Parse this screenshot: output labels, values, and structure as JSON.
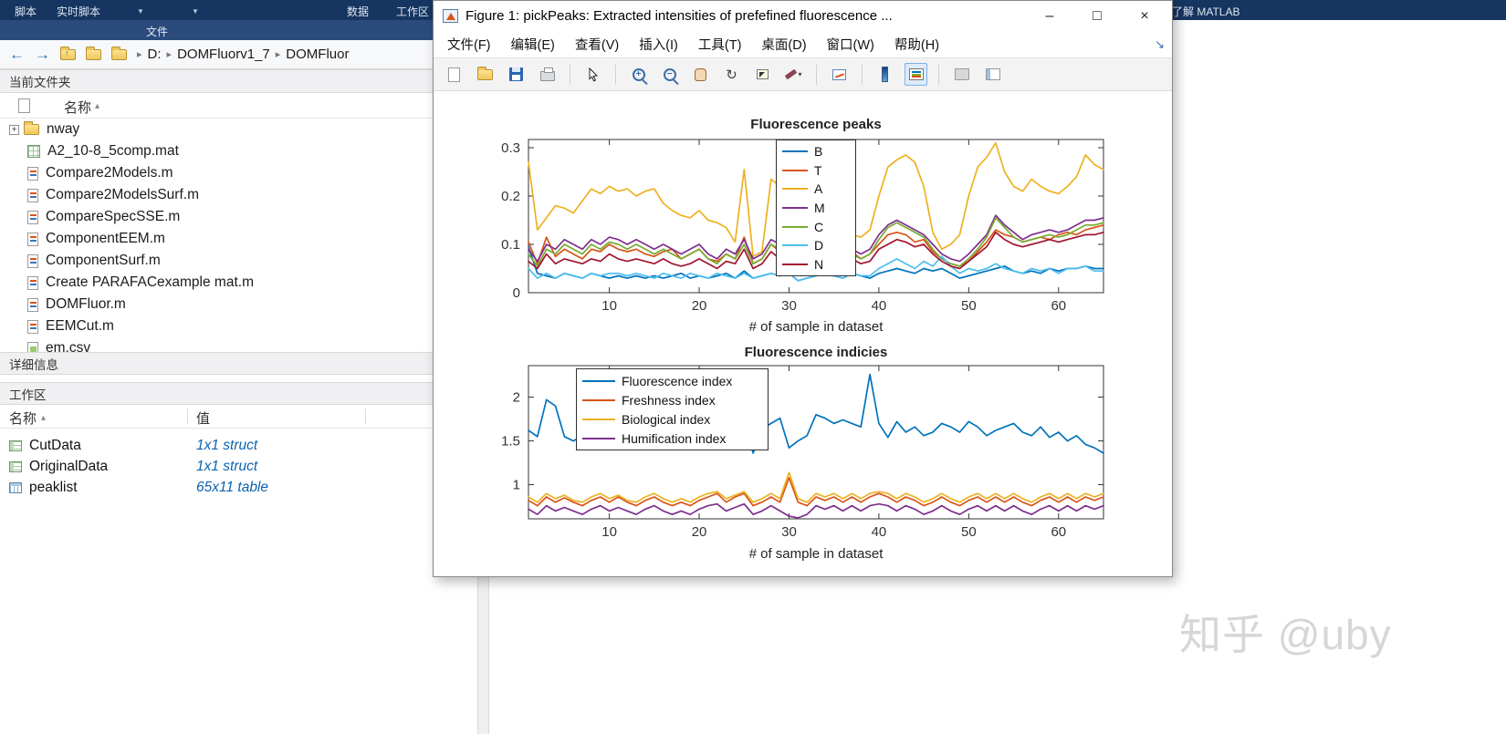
{
  "matlab_toolstrip": {
    "tab_fragments": [
      "脚本",
      "实时脚本",
      "数据",
      "工作区"
    ],
    "section_label": "文件",
    "resources_label": "了解 MATLAB"
  },
  "address_bar": {
    "breadcrumb": [
      "D:",
      "DOMFluorv1_7",
      "DOMFluor"
    ]
  },
  "current_folder": {
    "title": "当前文件夹",
    "column_header": "名称",
    "files": [
      {
        "name": "nway",
        "type": "folder",
        "expandable": true
      },
      {
        "name": "A2_10-8_5comp.mat",
        "type": "mat"
      },
      {
        "name": "Compare2Models.m",
        "type": "mfile"
      },
      {
        "name": "Compare2ModelsSurf.m",
        "type": "mfile"
      },
      {
        "name": "CompareSpecSSE.m",
        "type": "mfile"
      },
      {
        "name": "ComponentEEM.m",
        "type": "mfile"
      },
      {
        "name": "ComponentSurf.m",
        "type": "mfile"
      },
      {
        "name": "Create PARAFACexample mat.m",
        "type": "mfile"
      },
      {
        "name": "DOMFluor.m",
        "type": "mfile"
      },
      {
        "name": "EEMCut.m",
        "type": "mfile"
      },
      {
        "name": "em.csv",
        "type": "csv"
      }
    ]
  },
  "details_panel": {
    "title": "详细信息"
  },
  "workspace": {
    "title": "工作区",
    "columns": [
      "名称",
      "值"
    ],
    "rows": [
      {
        "name": "CutData",
        "value": "1x1 struct",
        "type": "struct"
      },
      {
        "name": "OriginalData",
        "value": "1x1 struct",
        "type": "struct"
      },
      {
        "name": "peaklist",
        "value": "65x11 table",
        "type": "table"
      }
    ]
  },
  "figure_window": {
    "title": "Figure 1: pickPeaks: Extracted intensities of prefefined fluorescence ...",
    "menu_items": [
      "文件(F)",
      "编辑(E)",
      "查看(V)",
      "插入(I)",
      "工具(T)",
      "桌面(D)",
      "窗口(W)",
      "帮助(H)"
    ]
  },
  "watermark": "知乎 @uby",
  "colors": {
    "toolstrip_navy": "#163560",
    "section_navy": "#2b4b7d",
    "workspace_value_blue": "#0b62b0",
    "legend_active_bg": "#dcebfb"
  },
  "icons": {
    "back_arrow": "←",
    "forward_arrow": "→",
    "up_arrow": "↑",
    "breadcrumb_separator": "▸",
    "sort_ascending": "▴",
    "folder_expander": "+",
    "toolstrip_caret": "▼",
    "brush_caret": "▾",
    "rotate_3d": "↻",
    "zoom_plus": "+",
    "zoom_minus": "−",
    "minimize": "–",
    "maximize": "□",
    "close": "×",
    "dock_figure": "↘"
  },
  "chart_data": [
    {
      "type": "line",
      "title": "Fluorescence peaks",
      "xlabel": "# of sample in dataset",
      "ylabel": "",
      "x_description": "sample index 1-65, one value per sample",
      "xlim": [
        1,
        65
      ],
      "ylim": [
        0,
        0.317
      ],
      "xticks": [
        10,
        20,
        30,
        40,
        50,
        60
      ],
      "yticks": [
        0,
        0.1,
        0.2,
        0.3
      ],
      "grid": false,
      "legend_position": "north (top center, inside axes)",
      "series": [
        {
          "name": "B",
          "color": "#0072BD",
          "values": [
            0.095,
            0.04,
            0.035,
            0.03,
            0.04,
            0.035,
            0.03,
            0.04,
            0.035,
            0.03,
            0.035,
            0.03,
            0.035,
            0.03,
            0.035,
            0.03,
            0.035,
            0.04,
            0.03,
            0.035,
            0.03,
            0.035,
            0.04,
            0.03,
            0.045,
            0.03,
            0.035,
            0.04,
            0.035,
            0.04,
            0.025,
            0.03,
            0.035,
            0.04,
            0.035,
            0.03,
            0.04,
            0.035,
            0.03,
            0.04,
            0.045,
            0.05,
            0.045,
            0.04,
            0.05,
            0.045,
            0.05,
            0.04,
            0.03,
            0.035,
            0.04,
            0.045,
            0.05,
            0.055,
            0.045,
            0.04,
            0.045,
            0.04,
            0.05,
            0.045,
            0.05,
            0.05,
            0.055,
            0.05,
            0.05
          ]
        },
        {
          "name": "T",
          "color": "#D95319",
          "values": [
            0.105,
            0.06,
            0.115,
            0.075,
            0.09,
            0.08,
            0.07,
            0.09,
            0.085,
            0.1,
            0.09,
            0.085,
            0.09,
            0.08,
            0.075,
            0.085,
            0.09,
            0.07,
            0.08,
            0.09,
            0.07,
            0.065,
            0.08,
            0.07,
            0.115,
            0.06,
            0.07,
            0.1,
            0.085,
            0.09,
            0.05,
            0.06,
            0.07,
            0.08,
            0.075,
            0.065,
            0.085,
            0.07,
            0.08,
            0.1,
            0.12,
            0.125,
            0.12,
            0.105,
            0.11,
            0.085,
            0.07,
            0.06,
            0.055,
            0.065,
            0.085,
            0.105,
            0.13,
            0.12,
            0.115,
            0.105,
            0.11,
            0.115,
            0.11,
            0.12,
            0.125,
            0.12,
            0.13,
            0.135,
            0.14
          ]
        },
        {
          "name": "A",
          "color": "#EDB120",
          "values": [
            0.27,
            0.13,
            0.155,
            0.18,
            0.175,
            0.165,
            0.19,
            0.215,
            0.205,
            0.22,
            0.21,
            0.215,
            0.2,
            0.21,
            0.215,
            0.185,
            0.17,
            0.16,
            0.155,
            0.17,
            0.15,
            0.145,
            0.135,
            0.105,
            0.255,
            0.075,
            0.085,
            0.235,
            0.22,
            0.085,
            0.05,
            0.065,
            0.1,
            0.12,
            0.11,
            0.1,
            0.12,
            0.115,
            0.13,
            0.2,
            0.26,
            0.275,
            0.285,
            0.27,
            0.22,
            0.125,
            0.09,
            0.1,
            0.12,
            0.2,
            0.26,
            0.28,
            0.31,
            0.25,
            0.22,
            0.21,
            0.235,
            0.22,
            0.21,
            0.205,
            0.22,
            0.24,
            0.285,
            0.265,
            0.255
          ]
        },
        {
          "name": "M",
          "color": "#7E2F8E",
          "values": [
            0.09,
            0.065,
            0.1,
            0.09,
            0.11,
            0.1,
            0.09,
            0.11,
            0.1,
            0.115,
            0.11,
            0.1,
            0.11,
            0.1,
            0.09,
            0.1,
            0.09,
            0.08,
            0.09,
            0.1,
            0.08,
            0.07,
            0.09,
            0.08,
            0.11,
            0.07,
            0.08,
            0.11,
            0.1,
            0.09,
            0.06,
            0.07,
            0.08,
            0.09,
            0.08,
            0.07,
            0.09,
            0.08,
            0.09,
            0.12,
            0.14,
            0.15,
            0.14,
            0.13,
            0.12,
            0.1,
            0.08,
            0.07,
            0.065,
            0.08,
            0.1,
            0.12,
            0.16,
            0.14,
            0.125,
            0.11,
            0.12,
            0.125,
            0.13,
            0.125,
            0.13,
            0.14,
            0.15,
            0.15,
            0.155
          ]
        },
        {
          "name": "C",
          "color": "#77AC30",
          "values": [
            0.08,
            0.055,
            0.09,
            0.08,
            0.1,
            0.09,
            0.08,
            0.1,
            0.09,
            0.105,
            0.1,
            0.09,
            0.1,
            0.09,
            0.08,
            0.09,
            0.08,
            0.07,
            0.08,
            0.09,
            0.07,
            0.06,
            0.08,
            0.07,
            0.1,
            0.06,
            0.07,
            0.1,
            0.09,
            0.08,
            0.05,
            0.06,
            0.07,
            0.08,
            0.07,
            0.06,
            0.08,
            0.07,
            0.08,
            0.11,
            0.135,
            0.145,
            0.135,
            0.125,
            0.115,
            0.09,
            0.07,
            0.06,
            0.055,
            0.07,
            0.09,
            0.115,
            0.155,
            0.135,
            0.115,
            0.105,
            0.11,
            0.115,
            0.12,
            0.115,
            0.12,
            0.13,
            0.14,
            0.14,
            0.145
          ]
        },
        {
          "name": "D",
          "color": "#4DBEEE",
          "values": [
            0.05,
            0.03,
            0.04,
            0.03,
            0.04,
            0.035,
            0.03,
            0.04,
            0.035,
            0.04,
            0.04,
            0.035,
            0.04,
            0.035,
            0.03,
            0.04,
            0.035,
            0.03,
            0.04,
            0.035,
            0.03,
            0.04,
            0.035,
            0.03,
            0.04,
            0.03,
            0.035,
            0.04,
            0.035,
            0.04,
            0.025,
            0.03,
            0.035,
            0.04,
            0.035,
            0.03,
            0.04,
            0.035,
            0.035,
            0.05,
            0.06,
            0.07,
            0.06,
            0.05,
            0.065,
            0.055,
            0.075,
            0.055,
            0.04,
            0.05,
            0.045,
            0.05,
            0.06,
            0.05,
            0.045,
            0.04,
            0.05,
            0.045,
            0.05,
            0.04,
            0.05,
            0.05,
            0.055,
            0.045,
            0.045
          ]
        },
        {
          "name": "N",
          "color": "#A2142F",
          "values": [
            0.065,
            0.05,
            0.08,
            0.06,
            0.07,
            0.065,
            0.06,
            0.07,
            0.065,
            0.08,
            0.07,
            0.065,
            0.07,
            0.065,
            0.06,
            0.07,
            0.06,
            0.055,
            0.06,
            0.07,
            0.06,
            0.05,
            0.065,
            0.06,
            0.09,
            0.05,
            0.06,
            0.085,
            0.07,
            0.07,
            0.045,
            0.05,
            0.06,
            0.065,
            0.06,
            0.055,
            0.07,
            0.06,
            0.065,
            0.09,
            0.1,
            0.11,
            0.105,
            0.095,
            0.1,
            0.08,
            0.065,
            0.055,
            0.05,
            0.065,
            0.08,
            0.095,
            0.125,
            0.11,
            0.1,
            0.095,
            0.1,
            0.105,
            0.11,
            0.105,
            0.11,
            0.115,
            0.12,
            0.12,
            0.125
          ]
        }
      ]
    },
    {
      "type": "line",
      "title": "Fluorescence indicies",
      "xlabel": "# of sample in dataset",
      "ylabel": "",
      "x_description": "sample index 1-65, one value per sample",
      "xlim": [
        1,
        65
      ],
      "ylim": [
        0.61,
        2.36
      ],
      "xticks": [
        10,
        20,
        30,
        40,
        50,
        60
      ],
      "yticks": [
        1,
        1.5,
        2
      ],
      "grid": false,
      "legend_position": "northwest (top left, inside axes)",
      "series": [
        {
          "name": "Fluorescence index",
          "color": "#0072BD",
          "values": [
            1.62,
            1.55,
            1.97,
            1.9,
            1.55,
            1.5,
            1.56,
            1.62,
            1.66,
            1.6,
            1.55,
            1.76,
            1.7,
            1.64,
            1.7,
            1.76,
            1.7,
            1.66,
            1.72,
            1.6,
            1.55,
            1.66,
            1.76,
            1.7,
            1.74,
            1.36,
            1.64,
            1.7,
            1.76,
            1.42,
            1.5,
            1.56,
            1.8,
            1.76,
            1.7,
            1.74,
            1.7,
            1.66,
            2.26,
            1.7,
            1.54,
            1.72,
            1.6,
            1.66,
            1.56,
            1.6,
            1.7,
            1.66,
            1.6,
            1.72,
            1.66,
            1.56,
            1.62,
            1.66,
            1.7,
            1.6,
            1.56,
            1.66,
            1.54,
            1.6,
            1.5,
            1.56,
            1.46,
            1.42,
            1.36
          ]
        },
        {
          "name": "Freshness index",
          "color": "#D95319",
          "values": [
            0.82,
            0.76,
            0.86,
            0.8,
            0.85,
            0.8,
            0.76,
            0.82,
            0.86,
            0.8,
            0.86,
            0.8,
            0.76,
            0.82,
            0.86,
            0.8,
            0.76,
            0.8,
            0.76,
            0.82,
            0.86,
            0.9,
            0.8,
            0.86,
            0.9,
            0.76,
            0.8,
            0.86,
            0.8,
            1.08,
            0.8,
            0.76,
            0.86,
            0.82,
            0.86,
            0.8,
            0.86,
            0.8,
            0.86,
            0.9,
            0.86,
            0.8,
            0.86,
            0.82,
            0.76,
            0.8,
            0.86,
            0.8,
            0.76,
            0.82,
            0.86,
            0.8,
            0.86,
            0.8,
            0.86,
            0.8,
            0.76,
            0.82,
            0.86,
            0.8,
            0.86,
            0.8,
            0.86,
            0.82,
            0.86
          ]
        },
        {
          "name": "Biological index",
          "color": "#EDB120",
          "values": [
            0.86,
            0.8,
            0.9,
            0.84,
            0.88,
            0.82,
            0.8,
            0.86,
            0.9,
            0.84,
            0.88,
            0.82,
            0.8,
            0.86,
            0.9,
            0.84,
            0.8,
            0.84,
            0.8,
            0.86,
            0.9,
            0.92,
            0.84,
            0.88,
            0.92,
            0.8,
            0.84,
            0.9,
            0.84,
            1.14,
            0.84,
            0.8,
            0.9,
            0.86,
            0.9,
            0.84,
            0.9,
            0.84,
            0.9,
            0.92,
            0.9,
            0.84,
            0.9,
            0.86,
            0.8,
            0.84,
            0.9,
            0.84,
            0.8,
            0.86,
            0.9,
            0.84,
            0.9,
            0.84,
            0.9,
            0.84,
            0.8,
            0.86,
            0.9,
            0.84,
            0.9,
            0.84,
            0.9,
            0.86,
            0.9
          ]
        },
        {
          "name": "Humification index",
          "color": "#7E2F8E",
          "values": [
            0.72,
            0.66,
            0.76,
            0.7,
            0.74,
            0.7,
            0.66,
            0.72,
            0.76,
            0.7,
            0.74,
            0.7,
            0.66,
            0.72,
            0.76,
            0.7,
            0.66,
            0.7,
            0.66,
            0.72,
            0.76,
            0.78,
            0.7,
            0.74,
            0.78,
            0.66,
            0.7,
            0.76,
            0.7,
            0.64,
            0.62,
            0.66,
            0.76,
            0.72,
            0.76,
            0.7,
            0.76,
            0.7,
            0.76,
            0.78,
            0.76,
            0.7,
            0.76,
            0.72,
            0.66,
            0.7,
            0.76,
            0.7,
            0.66,
            0.72,
            0.76,
            0.7,
            0.76,
            0.7,
            0.76,
            0.7,
            0.66,
            0.72,
            0.76,
            0.7,
            0.76,
            0.7,
            0.76,
            0.72,
            0.76
          ]
        }
      ]
    }
  ]
}
